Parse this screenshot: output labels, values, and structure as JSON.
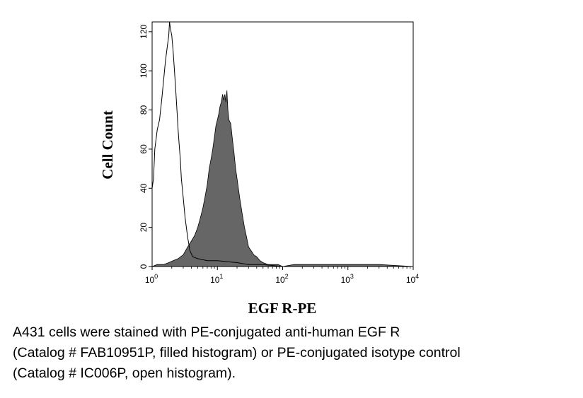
{
  "chart_data": {
    "type": "area",
    "title": "",
    "xlabel": "EGF R-PE",
    "ylabel": "Cell Count",
    "x_scale": "log",
    "xlim": [
      1,
      10000
    ],
    "ylim": [
      0,
      125
    ],
    "x_ticks": [
      {
        "value": 1,
        "base": "10",
        "exp": "0"
      },
      {
        "value": 10,
        "base": "10",
        "exp": "1"
      },
      {
        "value": 100,
        "base": "10",
        "exp": "2"
      },
      {
        "value": 1000,
        "base": "10",
        "exp": "3"
      },
      {
        "value": 10000,
        "base": "10",
        "exp": "4"
      }
    ],
    "y_ticks": [
      0,
      20,
      40,
      60,
      80,
      100,
      120
    ],
    "grid": false,
    "series": [
      {
        "style": "filled",
        "color": "#666666",
        "x": [
          1,
          1.2,
          1.5,
          1.8,
          2.1,
          2.5,
          3.0,
          3.5,
          4.0,
          4.5,
          5.0,
          5.5,
          6.0,
          6.5,
          7.0,
          7.5,
          8.0,
          8.5,
          9.0,
          9.5,
          10,
          10.5,
          11,
          11.5,
          12,
          12.5,
          13,
          13.5,
          14,
          14.5,
          15,
          16,
          17,
          18,
          19,
          20,
          22,
          24,
          26,
          28,
          30,
          33,
          36,
          40,
          45,
          50,
          60,
          70,
          85,
          100,
          150,
          300,
          1000,
          3000,
          10000
        ],
        "y": [
          0,
          1,
          1,
          2,
          3,
          4,
          6,
          10,
          13,
          16,
          20,
          25,
          30,
          36,
          42,
          50,
          55,
          60,
          66,
          72,
          75,
          78,
          82,
          84,
          88,
          85,
          88,
          84,
          90,
          80,
          75,
          73,
          65,
          58,
          50,
          45,
          35,
          27,
          20,
          15,
          10,
          8,
          6,
          5,
          3,
          2,
          1,
          1,
          1,
          0,
          1,
          1,
          1,
          1,
          0
        ]
      },
      {
        "style": "open",
        "color": "#000000",
        "x": [
          1,
          1.05,
          1.1,
          1.2,
          1.3,
          1.4,
          1.5,
          1.6,
          1.7,
          1.8,
          1.85,
          1.9,
          2.0,
          2.1,
          2.2,
          2.3,
          2.4,
          2.5,
          2.6,
          2.7,
          2.8,
          3.0,
          3.2,
          3.5,
          3.8,
          4.2,
          5,
          7,
          10,
          20,
          30,
          50,
          100,
          1000,
          10000
        ],
        "y": [
          40,
          45,
          60,
          70,
          75,
          85,
          95,
          105,
          112,
          118,
          125,
          122,
          118,
          110,
          100,
          90,
          80,
          70,
          62,
          55,
          45,
          35,
          25,
          15,
          8,
          5,
          4,
          3,
          3,
          2,
          1,
          1,
          0,
          0,
          0
        ]
      }
    ]
  },
  "caption": {
    "lines": [
      "A431 cells were stained with PE-conjugated anti-human EGF R",
      "(Catalog # FAB10951P, filled histogram) or PE-conjugated isotype control",
      "(Catalog # IC006P, open histogram)."
    ]
  }
}
